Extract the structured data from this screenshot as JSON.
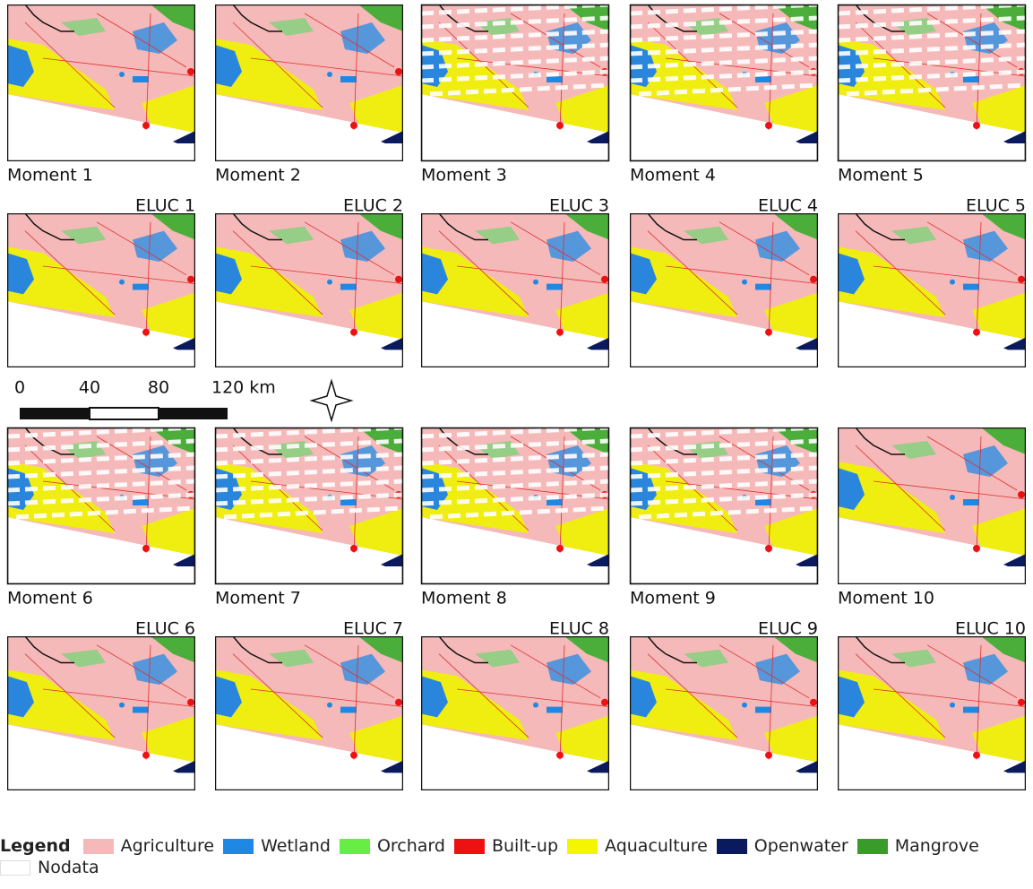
{
  "panels": [
    {
      "moment": "Moment 1",
      "eluc": "ELUC 1"
    },
    {
      "moment": "Moment 2",
      "eluc": "ELUC 2"
    },
    {
      "moment": "Moment 3",
      "eluc": "ELUC 3"
    },
    {
      "moment": "Moment 4",
      "eluc": "ELUC 4"
    },
    {
      "moment": "Moment 5",
      "eluc": "ELUC 5"
    },
    {
      "moment": "Moment 6",
      "eluc": "ELUC 6"
    },
    {
      "moment": "Moment 7",
      "eluc": "ELUC 7"
    },
    {
      "moment": "Moment 8",
      "eluc": "ELUC 8"
    },
    {
      "moment": "Moment 9",
      "eluc": "ELUC 9"
    },
    {
      "moment": "Moment 10",
      "eluc": "ELUC 10"
    }
  ],
  "scale_bar": {
    "labels": [
      "0",
      "40",
      "80",
      "120 km"
    ]
  },
  "legend": {
    "title": "Legend",
    "items": [
      {
        "name": "Agriculture",
        "color": "#f5b9b9"
      },
      {
        "name": "Wetland",
        "color": "#1e88e5"
      },
      {
        "name": "Orchard",
        "color": "#66ee44"
      },
      {
        "name": "Built-up",
        "color": "#ee1111"
      },
      {
        "name": "Aquaculture",
        "color": "#f5f500"
      },
      {
        "name": "Openwater",
        "color": "#0a1a5c"
      },
      {
        "name": "Mangrove",
        "color": "#3a9a2a"
      },
      {
        "name": "Nodata",
        "color": "#ffffff"
      }
    ]
  }
}
